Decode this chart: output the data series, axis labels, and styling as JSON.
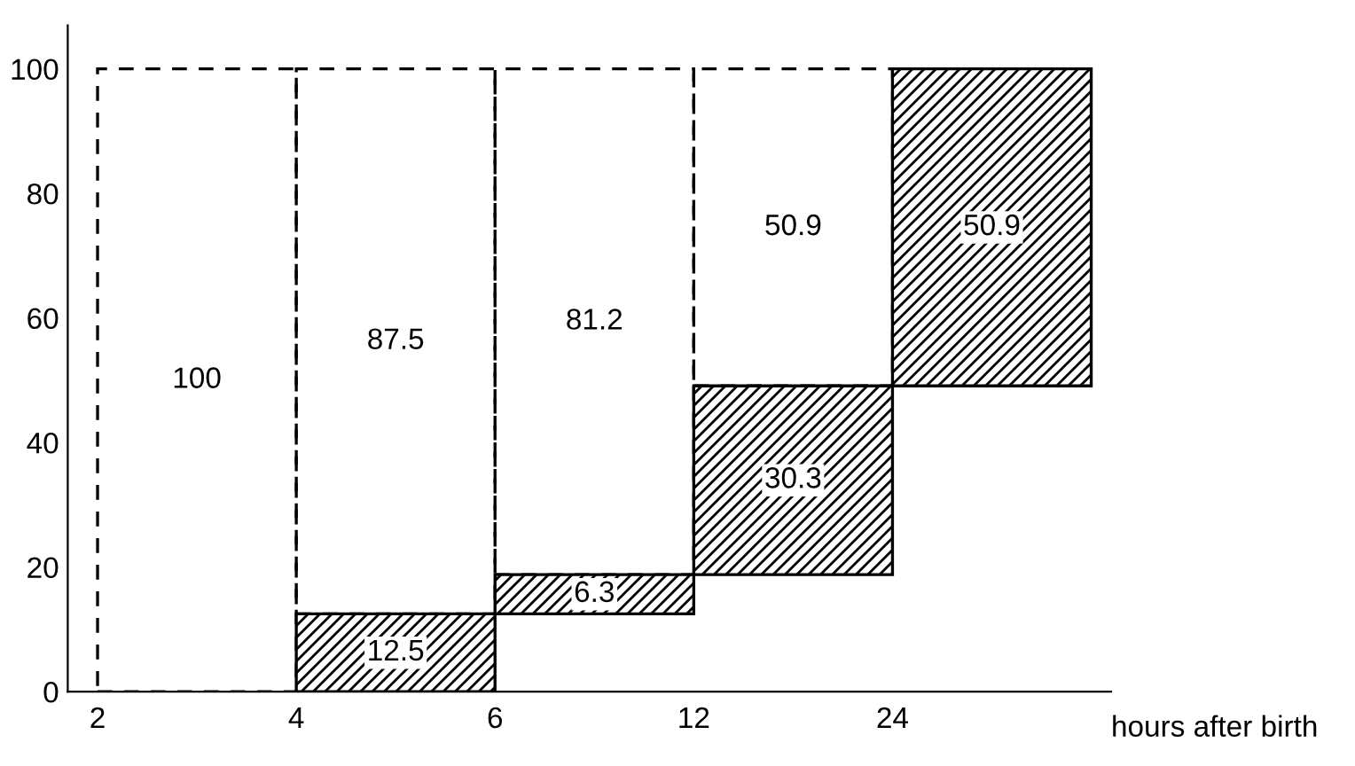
{
  "chart_data": {
    "type": "bar",
    "xlabel": "hours after birth",
    "categories": [
      "2",
      "4",
      "6",
      "12",
      "24"
    ],
    "ylim": [
      0,
      107
    ],
    "yticks": [
      0,
      20,
      40,
      60,
      80,
      100
    ],
    "series": [
      {
        "color": "#000000",
        "line_style": "dashed",
        "base": [
          0,
          12.5,
          18.8,
          49.1,
          null
        ],
        "values": [
          100,
          87.5,
          81.2,
          50.9,
          null
        ],
        "value_labels": [
          "100",
          "87.5",
          "81.2",
          "50.9",
          null
        ]
      },
      {
        "color": "#000000",
        "line_style": "solid",
        "base": [
          null,
          0,
          12.5,
          18.8,
          49.1
        ],
        "values": [
          null,
          12.5,
          6.3,
          30.3,
          50.9
        ],
        "value_labels": [
          null,
          "12.5",
          "6.3",
          "30.3",
          "50.9"
        ]
      }
    ],
    "grid": false
  }
}
